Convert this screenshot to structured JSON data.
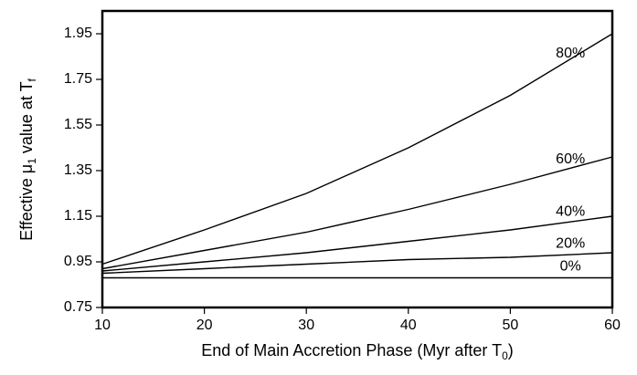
{
  "chart_data": {
    "type": "line",
    "xlabel": [
      "End of Main Accretion Phase (Myr after T",
      "0",
      ")"
    ],
    "ylabel": [
      "Effective μ",
      "1",
      " value at T",
      "f"
    ],
    "x": [
      10,
      20,
      30,
      40,
      50,
      60
    ],
    "series": [
      {
        "name": "80%",
        "color": "#000000",
        "values": [
          0.94,
          1.09,
          1.25,
          1.45,
          1.68,
          1.95
        ]
      },
      {
        "name": "60%",
        "color": "#000000",
        "values": [
          0.92,
          1.0,
          1.08,
          1.18,
          1.29,
          1.41
        ]
      },
      {
        "name": "40%",
        "color": "#000000",
        "values": [
          0.91,
          0.95,
          0.99,
          1.04,
          1.09,
          1.15
        ]
      },
      {
        "name": "20%",
        "color": "#000000",
        "values": [
          0.9,
          0.92,
          0.94,
          0.96,
          0.97,
          0.99
        ]
      },
      {
        "name": "0%",
        "color": "#000000",
        "values": [
          0.88,
          0.88,
          0.88,
          0.88,
          0.88,
          0.88
        ]
      }
    ],
    "xlim": [
      10,
      60
    ],
    "xticks": [
      10,
      20,
      30,
      40,
      50,
      60
    ],
    "ylim": [
      0.75,
      2.05
    ],
    "yticks": [
      0.75,
      0.95,
      1.15,
      1.35,
      1.55,
      1.75,
      1.95
    ],
    "grid": false
  }
}
